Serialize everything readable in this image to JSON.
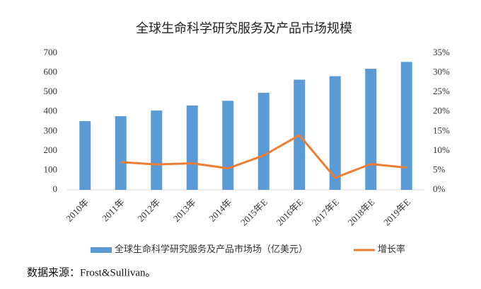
{
  "chart_data": {
    "type": "bar-line",
    "title": "全球生命科学研究服务及产品市场规模",
    "categories": [
      "2010年",
      "2011年",
      "2012年",
      "2013年",
      "2014年",
      "2015年E",
      "2016年E",
      "2017年E",
      "2018年E",
      "2019年E"
    ],
    "series": [
      {
        "name": "全球生命科学研究服务及产品市场场（亿美元）",
        "type": "bar",
        "color": "#5b9bd5",
        "values": [
          352,
          377,
          406,
          432,
          456,
          497,
          564,
          582,
          620,
          655
        ]
      },
      {
        "name": "增长率",
        "type": "line",
        "axis": "y2",
        "color": "#ed7d31",
        "values": [
          null,
          7.1,
          6.5,
          6.8,
          5.5,
          8.8,
          14.0,
          3.1,
          6.6,
          5.7
        ]
      }
    ],
    "ylim": [
      0,
      700
    ],
    "yticks": [
      0,
      100,
      200,
      300,
      400,
      500,
      600,
      700
    ],
    "y2lim": [
      0,
      35
    ],
    "y2ticks": [
      {
        "value": 0,
        "label": "0%"
      },
      {
        "value": 5,
        "label": "5%"
      },
      {
        "value": 10,
        "label": "10%"
      },
      {
        "value": 15,
        "label": "15%"
      },
      {
        "value": 20,
        "label": "20%"
      },
      {
        "value": 25,
        "label": "25%"
      },
      {
        "value": 30,
        "label": "30%"
      },
      {
        "value": 35,
        "label": "35%"
      }
    ],
    "legend": "bottom",
    "source": "数据来源：Frost&Sullivan。"
  }
}
